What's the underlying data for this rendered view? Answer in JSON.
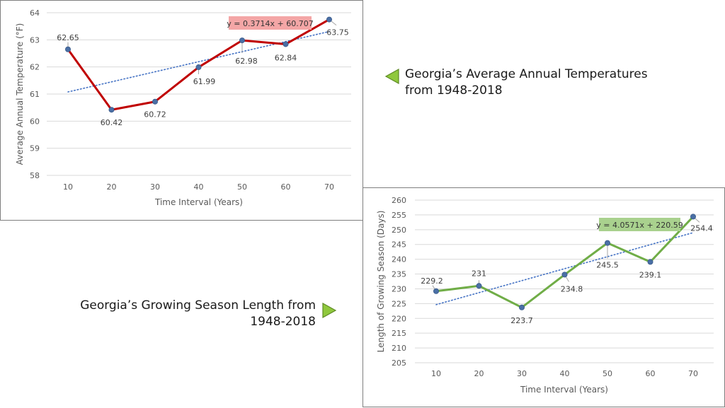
{
  "colors": {
    "temp_line": "#c00000",
    "season_line": "#70ad47",
    "marker": "#4a6fa5",
    "trend": "#4472c4",
    "temp_eq_bg": "#f4a6a6",
    "season_eq_bg": "#a9d18e",
    "grid": "#d9d9d9",
    "arrow_fill": "#8fc83c"
  },
  "captions": {
    "temperature": "Georgia’s Average Annual Temperatures from 1948-2018",
    "growing_season": "Georgia’s Growing Season Length from 1948-2018"
  },
  "chart_data": [
    {
      "type": "line",
      "title": "",
      "xlabel": "Time Interval (Years)",
      "ylabel": "Average Annual Temperature (°F)",
      "x": [
        10,
        20,
        30,
        40,
        50,
        60,
        70
      ],
      "series": [
        {
          "values": [
            62.65,
            60.42,
            60.72,
            61.99,
            62.98,
            62.84,
            63.75
          ]
        }
      ],
      "data_labels": [
        "62.65",
        "60.42",
        "60.72",
        "61.99",
        "62.98",
        "62.84",
        "63.75"
      ],
      "ylim": [
        58,
        64
      ],
      "yticks": [
        58,
        59,
        60,
        61,
        62,
        63,
        64
      ],
      "xticks": [
        10,
        20,
        30,
        40,
        50,
        60,
        70
      ],
      "trendline": {
        "slope": 0.3714,
        "intercept": 60.707,
        "label": "y = 0.3714x + 60.707"
      },
      "grid": true,
      "legend": "none"
    },
    {
      "type": "line",
      "title": "",
      "xlabel": "Time Interval (Years)",
      "ylabel": "Length of Growing Season (Days)",
      "x": [
        10,
        20,
        30,
        40,
        50,
        60,
        70
      ],
      "series": [
        {
          "values": [
            229.2,
            231,
            223.7,
            234.8,
            245.5,
            239.1,
            254.4
          ]
        }
      ],
      "data_labels": [
        "229.2",
        "231",
        "223.7",
        "234.8",
        "245.5",
        "239.1",
        "254.4"
      ],
      "ylim": [
        205,
        260
      ],
      "yticks": [
        205,
        210,
        215,
        220,
        225,
        230,
        235,
        240,
        245,
        250,
        255,
        260
      ],
      "xticks": [
        10,
        20,
        30,
        40,
        50,
        60,
        70
      ],
      "trendline": {
        "slope": 4.0571,
        "intercept": 220.59,
        "label": "y = 4.0571x + 220.59"
      },
      "grid": true,
      "legend": "none"
    }
  ]
}
